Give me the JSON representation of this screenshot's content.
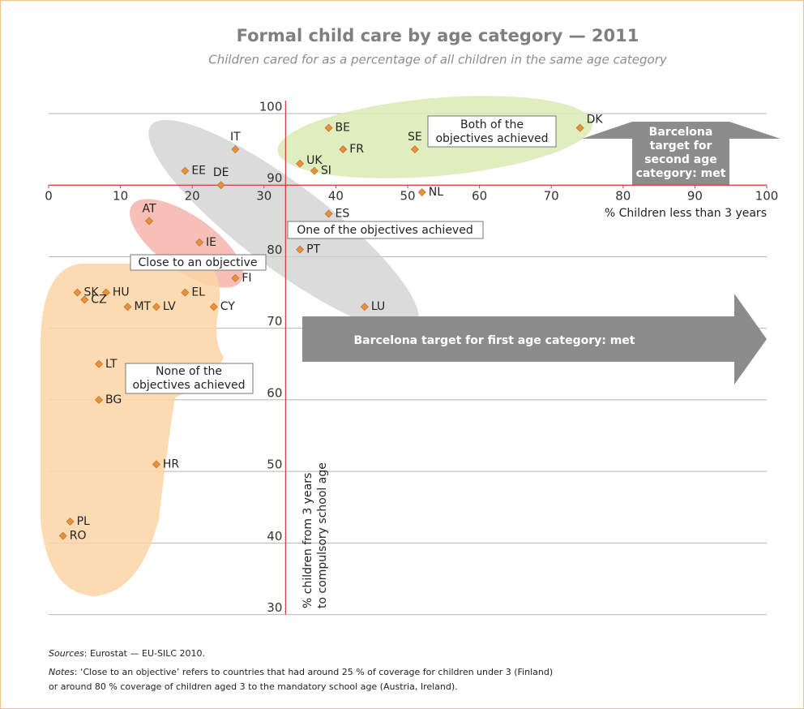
{
  "chart_data": {
    "type": "scatter",
    "title": "Formal child care by age category — 2011",
    "subtitle": "Children cared for as a percentage of all children in the same age category",
    "x_label": "% Children less than 3 years",
    "y_label": [
      "% children from 3 years",
      "to compulsory school age"
    ],
    "point_labels": [
      "BE",
      "SE",
      "FR",
      "DK",
      "UK",
      "SI",
      "NL",
      "IT",
      "EE",
      "DE",
      "AT",
      "IE",
      "ES",
      "PT",
      "FI",
      "SK",
      "HU",
      "CZ",
      "MT",
      "LV",
      "EL",
      "CY",
      "LU",
      "LT",
      "BG",
      "HR",
      "PL",
      "RO"
    ],
    "x": [
      39,
      51,
      41,
      74,
      35,
      37,
      52,
      26,
      19,
      24,
      14,
      21,
      39,
      35,
      26,
      4,
      8,
      5,
      11,
      15,
      19,
      23,
      44,
      7,
      7,
      15,
      3,
      2
    ],
    "values": [
      98,
      95,
      95,
      98,
      93,
      92,
      89,
      95,
      92,
      90,
      85,
      82,
      86,
      81,
      77,
      75,
      75,
      74,
      73,
      73,
      75,
      73,
      73,
      65,
      60,
      51,
      43,
      41
    ],
    "color": "#e8913c",
    "xlim": [
      0,
      100
    ],
    "xticks": [
      0,
      10,
      20,
      30,
      40,
      50,
      60,
      70,
      80,
      90,
      100
    ],
    "ylim": [
      30,
      100
    ],
    "yticks": [
      30,
      40,
      50,
      60,
      70,
      80,
      90,
      100
    ],
    "x_axis_at": 90,
    "y_axis_at": 33,
    "grid": true,
    "annotations": {
      "both": [
        "Both of the",
        "objectives achieved"
      ],
      "one": "One of the objectives achieved",
      "close": "Close to an objective",
      "none": [
        "None of the",
        "objectives achieved"
      ],
      "second_target": [
        "Barcelona",
        "target for",
        "second age",
        "category: met"
      ],
      "first_target": "Barcelona target for first age category: met"
    }
  },
  "footnotes": {
    "sources_label": "Sources",
    "sources_text": ": Eurostat — EU-SILC 2010.",
    "notes_label": "Notes",
    "notes_lines": [
      ": ‘Close to an objective’ refers to countries that had around 25 % of coverage for children under 3 (Finland)",
      "or around 80 % coverage of children aged 3 to the mandatory school age (Austria, Ireland)."
    ]
  }
}
